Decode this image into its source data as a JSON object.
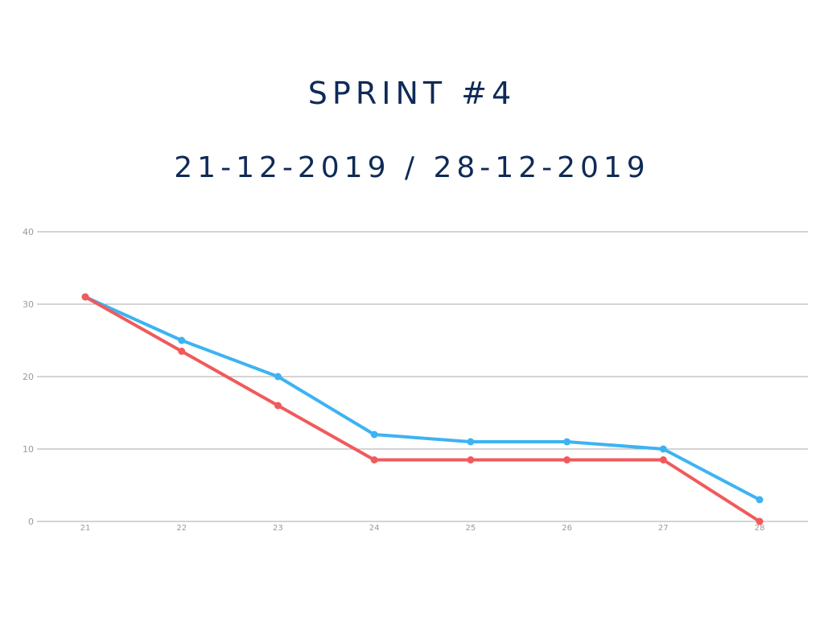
{
  "chart_data": {
    "type": "line",
    "title": "SPRINT #4",
    "subtitle": "21-12-2019 / 28-12-2019",
    "xlabel": "",
    "ylabel": "",
    "categories": [
      "21",
      "22",
      "23",
      "24",
      "25",
      "26",
      "27",
      "28"
    ],
    "y_ticks": [
      "0",
      "10",
      "20",
      "30",
      "40"
    ],
    "ylim": [
      0,
      40
    ],
    "grid": true,
    "legend": "none",
    "series": [
      {
        "color": "#3db3f2",
        "values": [
          31,
          25,
          20,
          12,
          11,
          11,
          10,
          3
        ]
      },
      {
        "color": "#f05a5b",
        "values": [
          31,
          23.5,
          16,
          8.5,
          8.5,
          8.5,
          8.5,
          0
        ]
      }
    ]
  }
}
